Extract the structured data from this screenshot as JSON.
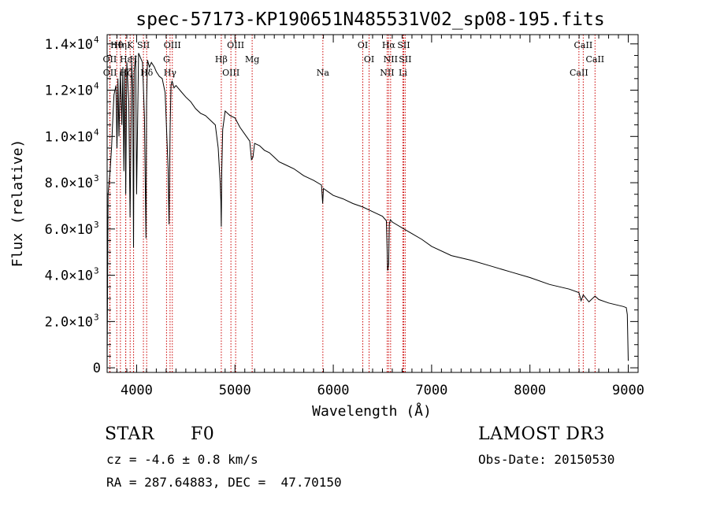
{
  "chart_data": {
    "type": "line",
    "title": "spec-57173-KP190651N485531V02_sp08-195.fits",
    "xlabel": "Wavelength (Å)",
    "ylabel": "Flux (relative)",
    "xlim": [
      3700,
      9100
    ],
    "ylim": [
      -200,
      14400
    ],
    "x_ticks": [
      4000,
      5000,
      6000,
      7000,
      8000,
      9000
    ],
    "x_tick_labels": [
      "4000",
      "5000",
      "6000",
      "7000",
      "8000",
      "9000"
    ],
    "y_ticks": [
      0,
      2000,
      4000,
      6000,
      8000,
      10000,
      12000,
      14000
    ],
    "y_tick_labels": [
      {
        "mantissa": "0",
        "exp": ""
      },
      {
        "mantissa": "2.0×10",
        "exp": "3"
      },
      {
        "mantissa": "4.0×10",
        "exp": "3"
      },
      {
        "mantissa": "6.0×10",
        "exp": "3"
      },
      {
        "mantissa": "8.0×10",
        "exp": "3"
      },
      {
        "mantissa": "1.0×10",
        "exp": "4"
      },
      {
        "mantissa": "1.2×10",
        "exp": "4"
      },
      {
        "mantissa": "1.4×10",
        "exp": "4"
      }
    ],
    "series": [
      {
        "name": "flux",
        "x": [
          3700,
          3710,
          3730,
          3745,
          3760,
          3770,
          3790,
          3800,
          3810,
          3820,
          3835,
          3850,
          3860,
          3870,
          3880,
          3889,
          3900,
          3920,
          3933,
          3950,
          3960,
          3968,
          3975,
          3990,
          4000,
          4020,
          4040,
          4060,
          4080,
          4095,
          4101,
          4110,
          4130,
          4150,
          4180,
          4200,
          4230,
          4260,
          4290,
          4320,
          4330,
          4340,
          4350,
          4360,
          4380,
          4400,
          4450,
          4500,
          4550,
          4600,
          4650,
          4700,
          4750,
          4800,
          4830,
          4850,
          4857,
          4861,
          4866,
          4875,
          4900,
          4950,
          5000,
          5050,
          5100,
          5150,
          5168,
          5183,
          5200,
          5250,
          5300,
          5350,
          5400,
          5450,
          5500,
          5600,
          5700,
          5800,
          5880,
          5892,
          5900,
          5950,
          6000,
          6100,
          6200,
          6300,
          6400,
          6500,
          6540,
          6553,
          6563,
          6570,
          6580,
          6600,
          6700,
          6800,
          6900,
          7000,
          7200,
          7400,
          7600,
          7800,
          8000,
          8200,
          8400,
          8498,
          8520,
          8542,
          8600,
          8662,
          8700,
          8800,
          8900,
          8950,
          8980,
          8990,
          9000
        ],
        "y": [
          0,
          7500,
          8500,
          9500,
          11000,
          11800,
          12200,
          9500,
          12500,
          10000,
          12800,
          10500,
          13000,
          8500,
          12900,
          7500,
          13200,
          11500,
          6500,
          13200,
          12000,
          5200,
          12800,
          13500,
          7500,
          13600,
          13400,
          13200,
          10800,
          5600,
          11500,
          13300,
          13000,
          13200,
          13000,
          12800,
          12600,
          12500,
          11900,
          8600,
          6200,
          10200,
          12200,
          12400,
          12100,
          12200,
          11950,
          11700,
          11500,
          11200,
          11000,
          10900,
          10700,
          10500,
          9500,
          8000,
          7200,
          6100,
          8500,
          10300,
          11100,
          10900,
          10800,
          10400,
          10100,
          9800,
          9000,
          9100,
          9700,
          9600,
          9400,
          9300,
          9100,
          8900,
          8800,
          8600,
          8300,
          8100,
          7900,
          7100,
          7750,
          7600,
          7450,
          7300,
          7100,
          6950,
          6750,
          6550,
          6350,
          4200,
          4500,
          6200,
          6400,
          6300,
          6050,
          5800,
          5550,
          5250,
          4850,
          4650,
          4400,
          4150,
          3900,
          3600,
          3400,
          3250,
          2900,
          3150,
          2850,
          3100,
          2950,
          2800,
          2700,
          2650,
          2600,
          2300,
          300
        ]
      }
    ],
    "emission_lines": [
      {
        "label": "Hθ",
        "wave": 3798
      },
      {
        "label": "OII",
        "wave": 3727
      },
      {
        "label": "OII",
        "wave": 3729
      },
      {
        "label": "Hη",
        "wave": 3835
      },
      {
        "label": "Hε",
        "wave": 3889
      },
      {
        "label": "Hζ",
        "wave": 3889
      },
      {
        "label": "K",
        "wave": 3934
      },
      {
        "label": "H",
        "wave": 3969
      },
      {
        "label": "Hδ",
        "wave": 4102
      },
      {
        "label": "SII",
        "wave": 4069
      },
      {
        "label": "G",
        "wave": 4304
      },
      {
        "label": "Hγ",
        "wave": 4340
      },
      {
        "label": "OIII",
        "wave": 4363
      },
      {
        "label": "Hβ",
        "wave": 4861
      },
      {
        "label": "OIII",
        "wave": 4959
      },
      {
        "label": "OIII",
        "wave": 5007
      },
      {
        "label": "Mg",
        "wave": 5175
      },
      {
        "label": "Na",
        "wave": 5894
      },
      {
        "label": "OI",
        "wave": 6300
      },
      {
        "label": "OI",
        "wave": 6364
      },
      {
        "label": "NII",
        "wave": 6548
      },
      {
        "label": "Hα",
        "wave": 6563
      },
      {
        "label": "NII",
        "wave": 6583
      },
      {
        "label": "Li",
        "wave": 6708
      },
      {
        "label": "SII",
        "wave": 6716
      },
      {
        "label": "SII",
        "wave": 6731
      },
      {
        "label": "CaII",
        "wave": 8498
      },
      {
        "label": "CaII",
        "wave": 8542
      },
      {
        "label": "CaII",
        "wave": 8662
      }
    ]
  },
  "info": {
    "object_class": "STAR",
    "subclass": "F0",
    "cz": "cz = -4.6 ± 0.8 km/s",
    "radec": "RA = 287.64883, DEC =  47.70150",
    "survey": "LAMOST DR3",
    "obs_date": "Obs-Date: 20150530"
  },
  "colors": {
    "axis": "#000000",
    "spectrum": "#000000",
    "line_marker": "#cc0000",
    "background": "#ffffff"
  }
}
